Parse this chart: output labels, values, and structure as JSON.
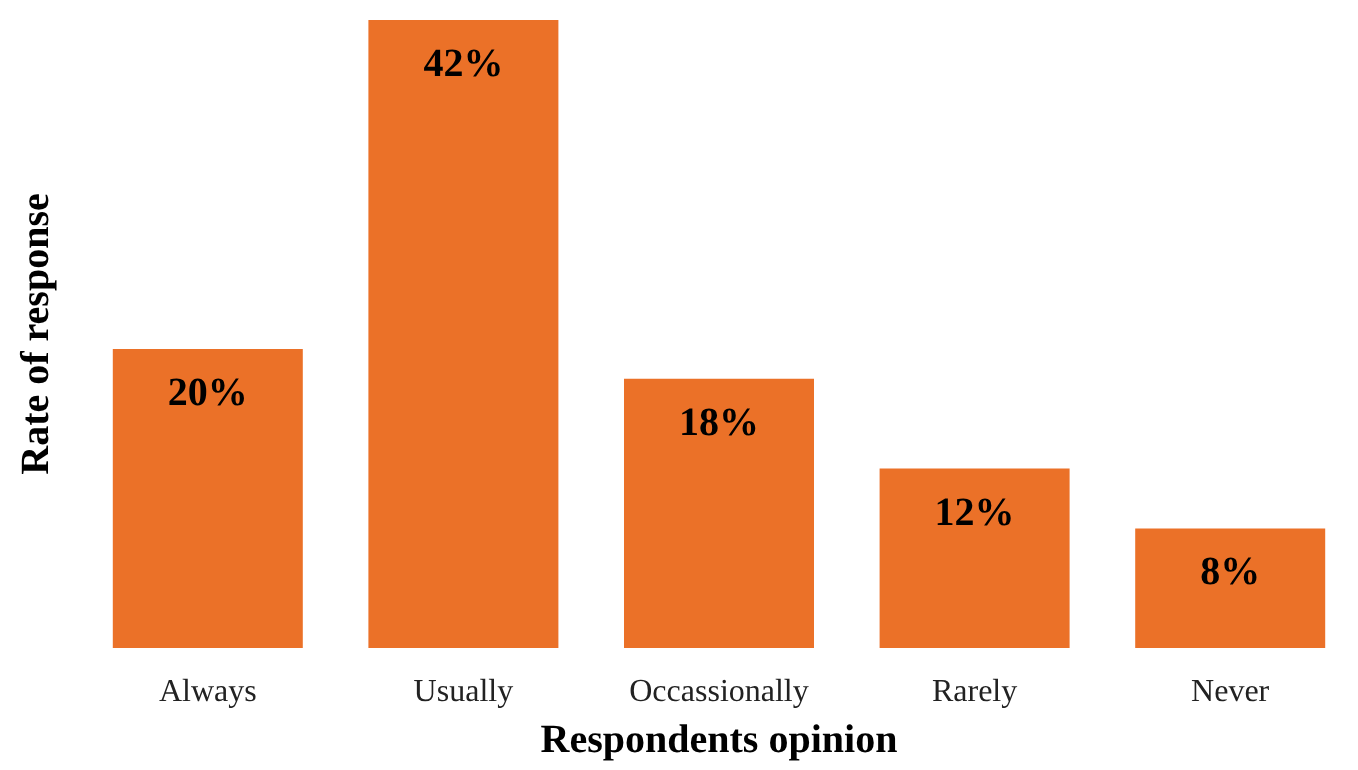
{
  "chart_data": {
    "type": "bar",
    "xlabel": "Respondents opinion",
    "ylabel": "Rate of response",
    "categories": [
      "Always",
      "Usually",
      "Occassionally",
      "Rarely",
      "Never"
    ],
    "values": [
      20,
      42,
      18,
      12,
      8
    ],
    "value_labels": [
      "20%",
      "42%",
      "18%",
      "12%",
      "8%"
    ],
    "color": "#eb7128",
    "ylim": [
      0,
      42
    ],
    "tick_labels": "x"
  }
}
